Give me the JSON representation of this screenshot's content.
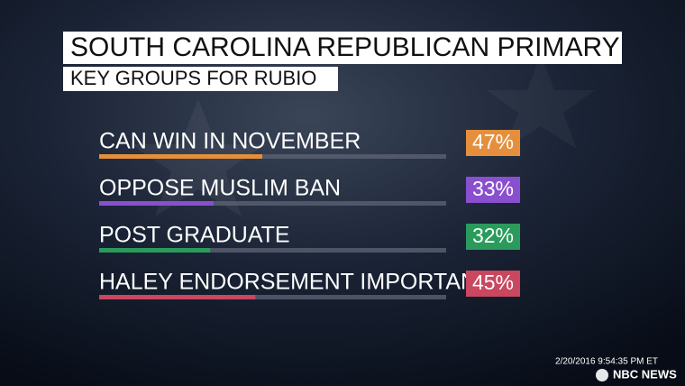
{
  "chart_data": {
    "type": "bar",
    "title": "SOUTH CAROLINA REPUBLICAN PRIMARY",
    "subtitle": "KEY GROUPS FOR RUBIO",
    "categories": [
      "CAN WIN IN NOVEMBER",
      "OPPOSE MUSLIM BAN",
      "POST GRADUATE",
      "HALEY ENDORSEMENT IMPORTANT"
    ],
    "values": [
      47,
      33,
      32,
      45
    ],
    "value_labels": [
      "47%",
      "33%",
      "32%",
      "45%"
    ],
    "colors": [
      "#e58f3c",
      "#8a4fcf",
      "#2a9b5c",
      "#c9475f"
    ],
    "xlim": [
      0,
      100
    ],
    "timestamp": "2/20/2016 9:54:35 PM ET",
    "source": "NBC NEWS"
  }
}
